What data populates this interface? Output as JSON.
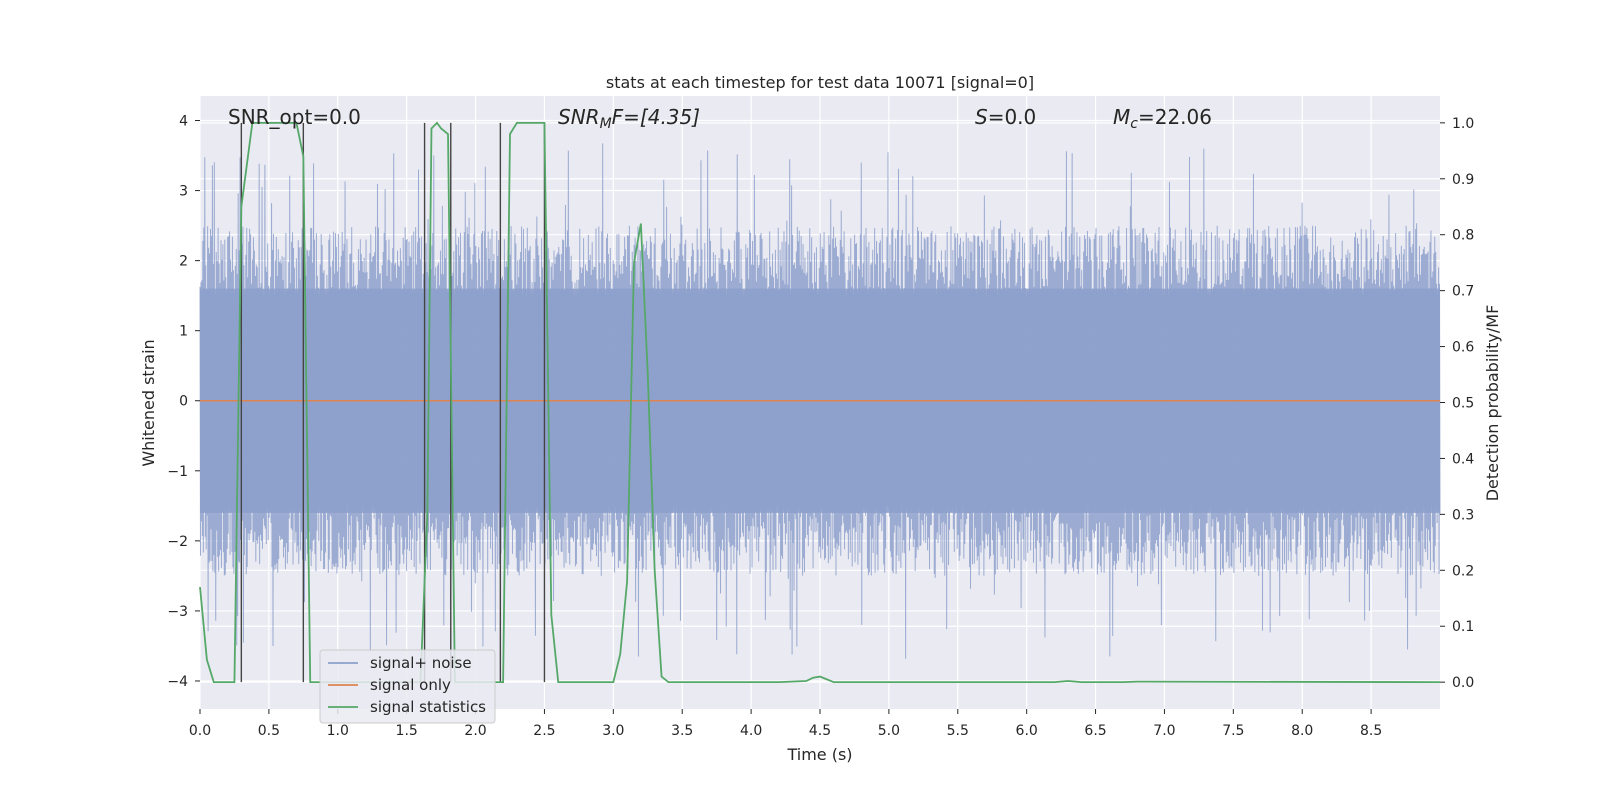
{
  "chart_data": {
    "type": "line",
    "title": "stats at each timestep for test data 10071 [signal=0]",
    "xlabel": "Time (s)",
    "ylabel": "Whitened strain",
    "y2label": "Detection probability/MF",
    "xlim": [
      0,
      9
    ],
    "ylim": [
      -4.4,
      4.35
    ],
    "y2lim": [
      -0.048,
      1.048
    ],
    "xticks": [
      "0.0",
      "0.5",
      "1.0",
      "1.5",
      "2.0",
      "2.5",
      "3.0",
      "3.5",
      "4.0",
      "4.5",
      "5.0",
      "5.5",
      "6.0",
      "6.5",
      "7.0",
      "7.5",
      "8.0",
      "8.5"
    ],
    "yticks": [
      "4",
      "3",
      "2",
      "1",
      "0",
      "−1",
      "−2",
      "−3",
      "−4"
    ],
    "y2ticks": [
      "1.0",
      "0.9",
      "0.8",
      "0.7",
      "0.6",
      "0.5",
      "0.4",
      "0.3",
      "0.2",
      "0.1",
      "0.0"
    ],
    "grid": true,
    "legend_position": "lower-left",
    "annotations": {
      "snr_opt": "SNR_opt=0.0",
      "snr_mf_main": "SNR",
      "snr_mf_sub": "M",
      "snr_mf_rest": "F=[4.35]",
      "s_main": "S",
      "s_rest": "=0.0",
      "mc_main": "M",
      "mc_sub": "c",
      "mc_rest": "=22.06"
    },
    "series": [
      {
        "name": "signal+ noise",
        "color": "#8da0cb",
        "style": "dense noise band between roughly -2.5 and 2.5 with spikes to ±3.8",
        "amplitude_envelope": 2.5,
        "peak_max": 3.7,
        "peak_min": -3.95
      },
      {
        "name": "signal only",
        "color": "#dd8452",
        "x": [
          0,
          9
        ],
        "y": [
          0,
          0
        ]
      },
      {
        "name": "signal statistics",
        "color": "#55a868",
        "axis": "right",
        "x": [
          0.0,
          0.05,
          0.1,
          0.25,
          0.3,
          0.38,
          0.45,
          0.65,
          0.7,
          0.75,
          0.8,
          0.85,
          1.55,
          1.6,
          1.65,
          1.68,
          1.72,
          1.75,
          1.8,
          1.85,
          2.2,
          2.25,
          2.3,
          2.35,
          2.45,
          2.5,
          2.55,
          2.6,
          3.0,
          3.05,
          3.1,
          3.15,
          3.2,
          3.25,
          3.3,
          3.35,
          3.4,
          4.2,
          4.4,
          4.45,
          4.5,
          4.55,
          4.6,
          6.2,
          6.3,
          6.4,
          6.7,
          6.8,
          9.0
        ],
        "y": [
          0.17,
          0.04,
          0.0,
          0.0,
          0.85,
          1.0,
          1.0,
          1.0,
          1.0,
          0.94,
          0.0,
          0.0,
          0.0,
          0.0,
          0.3,
          0.99,
          1.0,
          0.99,
          0.98,
          0.0,
          0.0,
          0.98,
          1.0,
          1.0,
          1.0,
          1.0,
          0.12,
          0.0,
          0.0,
          0.05,
          0.18,
          0.75,
          0.82,
          0.55,
          0.2,
          0.01,
          0.0,
          0.0,
          0.002,
          0.008,
          0.01,
          0.005,
          0.0,
          0.0,
          0.002,
          0.0,
          0.0,
          0.001,
          0.0
        ]
      }
    ],
    "vertical_markers": {
      "color": "#444444",
      "x": [
        0.3,
        0.75,
        1.63,
        1.82,
        2.18,
        2.5
      ]
    }
  }
}
